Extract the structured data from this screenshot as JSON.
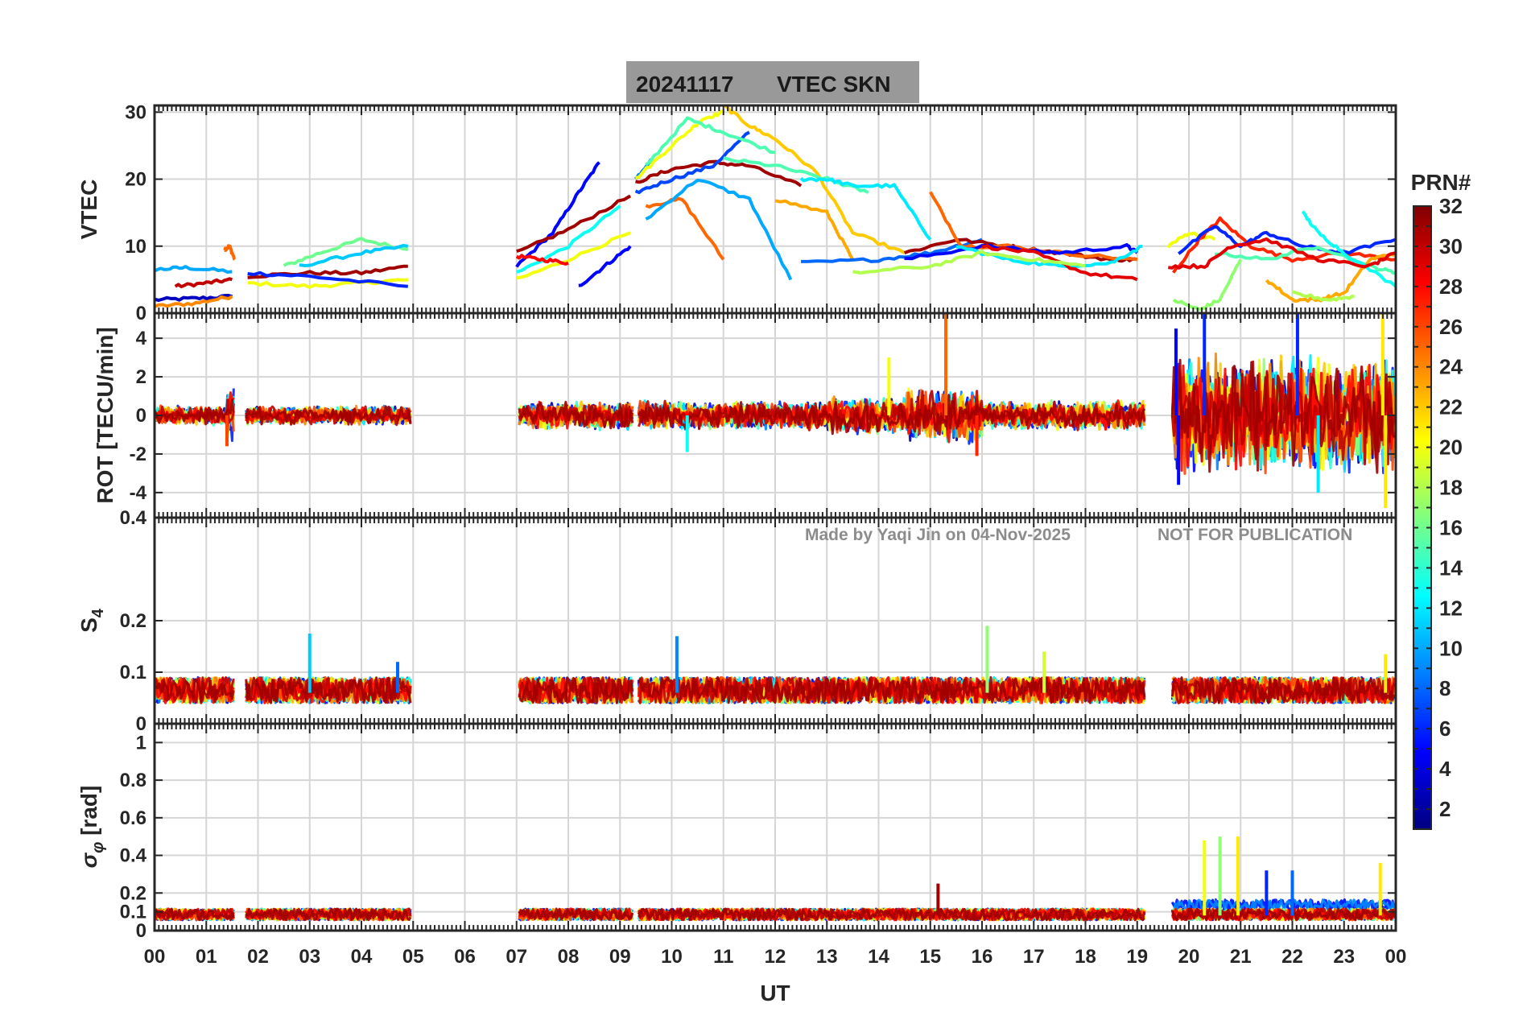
{
  "title": {
    "date": "20241117",
    "text": "VTEC  SKN"
  },
  "watermark": {
    "made_by": "Made by Yaqi Jin on 04-Nov-2025",
    "notice": "NOT FOR PUBLICATION"
  },
  "colorbar": {
    "title": "PRN#",
    "min": 1,
    "max": 32,
    "tick_labels": [
      "32",
      "30",
      "28",
      "26",
      "24",
      "22",
      "20",
      "18",
      "16",
      "14",
      "12",
      "10",
      "8",
      "6",
      "4",
      "2"
    ],
    "tick_values": [
      32,
      30,
      28,
      26,
      24,
      22,
      20,
      18,
      16,
      14,
      12,
      10,
      8,
      6,
      4,
      2
    ],
    "colormap": "jet"
  },
  "x_axis": {
    "label": "UT",
    "range": [
      0,
      24
    ],
    "tick_labels": [
      "00",
      "01",
      "02",
      "03",
      "04",
      "05",
      "06",
      "07",
      "08",
      "09",
      "10",
      "11",
      "12",
      "13",
      "14",
      "15",
      "16",
      "17",
      "18",
      "19",
      "20",
      "21",
      "22",
      "23",
      "00"
    ]
  },
  "data_gaps_ut": [
    [
      1.55,
      1.75
    ],
    [
      4.95,
      7.05
    ],
    [
      9.25,
      9.35
    ],
    [
      19.15,
      19.65
    ]
  ],
  "chart_data": [
    {
      "type": "line",
      "panel": "VTEC",
      "ylabel": "VTEC",
      "ylim": [
        0,
        31
      ],
      "y_tick_labels": [
        "0",
        "10",
        "20",
        "30"
      ],
      "y_tick_values": [
        0,
        10,
        20,
        30
      ],
      "grid": true,
      "description_of_series": "Per-PRN VTEC arcs colored by PRN number",
      "series": [
        {
          "prn": 3,
          "x": [
            0.0,
            0.8,
            1.5
          ],
          "y": [
            2,
            2.2,
            2.5
          ]
        },
        {
          "prn": 10,
          "x": [
            0.0,
            0.6,
            1.5
          ],
          "y": [
            6.5,
            6.8,
            6.2
          ]
        },
        {
          "prn": 24,
          "x": [
            0.0,
            0.8,
            1.5
          ],
          "y": [
            1,
            1.5,
            2.5
          ]
        },
        {
          "prn": 25,
          "x": [
            1.35,
            1.45,
            1.55
          ],
          "y": [
            9.5,
            10,
            8
          ]
        },
        {
          "prn": 30,
          "x": [
            0.4,
            1.0,
            1.5
          ],
          "y": [
            4,
            4.5,
            5
          ]
        },
        {
          "prn": 20,
          "x": [
            1.8,
            3.0,
            4.0,
            4.9
          ],
          "y": [
            4.5,
            4,
            4.5,
            5
          ]
        },
        {
          "prn": 16,
          "x": [
            2.5,
            3.2,
            4.0,
            4.9
          ],
          "y": [
            7,
            9,
            11,
            9.5
          ]
        },
        {
          "prn": 31,
          "x": [
            1.8,
            3.0,
            4.0,
            4.9
          ],
          "y": [
            5.5,
            6,
            6,
            7
          ]
        },
        {
          "prn": 6,
          "x": [
            1.8,
            3.0,
            4.9
          ],
          "y": [
            6,
            5.5,
            4
          ]
        },
        {
          "prn": 11,
          "x": [
            2.8,
            4.0,
            4.9
          ],
          "y": [
            7,
            9,
            10
          ]
        },
        {
          "prn": 5,
          "x": [
            7.0,
            7.7,
            8.2,
            8.6
          ],
          "y": [
            7,
            12,
            18,
            22.5
          ]
        },
        {
          "prn": 5,
          "x": [
            8.2,
            8.7,
            9.2
          ],
          "y": [
            4,
            7,
            10
          ]
        },
        {
          "prn": 13,
          "x": [
            7.0,
            8.0,
            9.0
          ],
          "y": [
            6,
            10,
            16
          ]
        },
        {
          "prn": 20,
          "x": [
            7.0,
            8.0,
            9.2
          ],
          "y": [
            5,
            8,
            12
          ]
        },
        {
          "prn": 31,
          "x": [
            7.0,
            8.0,
            9.2
          ],
          "y": [
            9,
            12.5,
            17.5
          ]
        },
        {
          "prn": 28,
          "x": [
            7.0,
            7.5,
            8.0
          ],
          "y": [
            8.5,
            8,
            7.5
          ]
        },
        {
          "prn": 9,
          "x": [
            9.3,
            9.6
          ],
          "y": [
            20,
            23
          ]
        },
        {
          "prn": 20,
          "x": [
            9.3,
            10.0,
            10.6,
            11.0
          ],
          "y": [
            20,
            25,
            29,
            30
          ]
        },
        {
          "prn": 31,
          "x": [
            9.3,
            10.0,
            10.8,
            11.5,
            12.5
          ],
          "y": [
            19.5,
            21.5,
            22.5,
            22,
            19
          ]
        },
        {
          "prn": 7,
          "x": [
            9.3,
            10.0,
            10.8,
            11.5
          ],
          "y": [
            18,
            20,
            22,
            27
          ]
        },
        {
          "prn": 15,
          "x": [
            9.5,
            10.3,
            11.0,
            12.0
          ],
          "y": [
            22,
            29,
            27,
            24
          ]
        },
        {
          "prn": 25,
          "x": [
            9.5,
            10.2,
            11.0
          ],
          "y": [
            16,
            17,
            8
          ]
        },
        {
          "prn": 10,
          "x": [
            9.5,
            10.5,
            11.5,
            12.3
          ],
          "y": [
            14,
            20,
            17,
            5
          ]
        },
        {
          "prn": 22,
          "x": [
            11.0,
            11.5,
            12.0,
            12.8,
            13.5,
            14.5
          ],
          "y": [
            31,
            28,
            26,
            21,
            12,
            9
          ]
        },
        {
          "prn": 15,
          "x": [
            11.0,
            12.0,
            13.0,
            13.8
          ],
          "y": [
            23,
            22,
            20,
            18
          ]
        },
        {
          "prn": 12,
          "x": [
            12.5,
            13.0,
            13.5,
            14.3,
            15.0
          ],
          "y": [
            20,
            20,
            19,
            19,
            11
          ]
        },
        {
          "prn": 23,
          "x": [
            12.0,
            13.0,
            13.5
          ],
          "y": [
            17,
            15,
            8
          ]
        },
        {
          "prn": 8,
          "x": [
            12.5,
            14.0,
            15.0,
            16.0
          ],
          "y": [
            7.5,
            8,
            9,
            11
          ]
        },
        {
          "prn": 31,
          "x": [
            14.5,
            15.5,
            16.5,
            17.5,
            18.5,
            19.0
          ],
          "y": [
            9,
            11,
            10,
            9,
            8,
            8
          ]
        },
        {
          "prn": 25,
          "x": [
            15.0,
            15.6,
            16.5,
            17.5,
            19.0
          ],
          "y": [
            18,
            10,
            10,
            9,
            8
          ]
        },
        {
          "prn": 5,
          "x": [
            14.5,
            16.0,
            17.5,
            18.8,
            19.0
          ],
          "y": [
            8,
            10,
            9,
            10,
            9
          ]
        },
        {
          "prn": 12,
          "x": [
            15.5,
            16.5,
            17.5,
            18.5,
            19.1
          ],
          "y": [
            10,
            8,
            7,
            7.5,
            10
          ]
        },
        {
          "prn": 29,
          "x": [
            16.0,
            17.0,
            18.0,
            19.0
          ],
          "y": [
            10,
            9,
            6,
            5
          ]
        },
        {
          "prn": 18,
          "x": [
            13.5,
            15.0,
            16.0,
            17.0,
            18.0
          ],
          "y": [
            6,
            7,
            9,
            8,
            7
          ]
        },
        {
          "prn": 20,
          "x": [
            19.6,
            20.0,
            20.5
          ],
          "y": [
            10,
            12,
            11
          ]
        },
        {
          "prn": 17,
          "x": [
            19.7,
            20.2,
            20.6,
            21.0
          ],
          "y": [
            2,
            0.5,
            2,
            8
          ]
        },
        {
          "prn": 27,
          "x": [
            19.7,
            20.2,
            20.6,
            21.2,
            22.0,
            23.0,
            24.0
          ],
          "y": [
            6,
            11,
            14,
            10,
            8,
            9,
            8
          ]
        },
        {
          "prn": 6,
          "x": [
            19.8,
            20.5,
            21.0,
            21.5,
            22.2,
            23.0,
            24.0
          ],
          "y": [
            9,
            13,
            10,
            12,
            10,
            9,
            11
          ]
        },
        {
          "prn": 15,
          "x": [
            20.5,
            21.5,
            22.5,
            23.5,
            24.0
          ],
          "y": [
            9,
            8,
            10,
            7,
            6
          ]
        },
        {
          "prn": 23,
          "x": [
            21.5,
            22.0,
            22.5,
            23.0,
            23.5,
            24.0
          ],
          "y": [
            5,
            2,
            2,
            3,
            8,
            9
          ]
        },
        {
          "prn": 13,
          "x": [
            22.2,
            22.5,
            23.0,
            24.0
          ],
          "y": [
            15,
            12,
            9,
            4
          ]
        },
        {
          "prn": 29,
          "x": [
            19.6,
            20.3,
            20.8,
            21.5,
            22.5,
            23.5,
            24.0
          ],
          "y": [
            7,
            7,
            10,
            11,
            8,
            7,
            9
          ]
        },
        {
          "prn": 18,
          "x": [
            22.0,
            22.7,
            23.2
          ],
          "y": [
            3,
            2,
            2.5
          ]
        }
      ]
    },
    {
      "type": "line",
      "panel": "ROT",
      "ylabel": "ROT [TECU/min]",
      "ylim": [
        -5.3,
        5.3
      ],
      "y_tick_labels": [
        "-4",
        "-2",
        "0",
        "2",
        "4"
      ],
      "y_tick_values": [
        -4,
        -2,
        0,
        2,
        4
      ],
      "grid": true,
      "description_of_series": "Rate of TEC per PRN; mostly within ±0.5, large excursions after 19.7 UT",
      "noise_amplitude_by_ut": [
        [
          0,
          0.4
        ],
        [
          1.4,
          1.2
        ],
        [
          1.7,
          0.4
        ],
        [
          5.0,
          0.4
        ],
        [
          7.0,
          0.6
        ],
        [
          13.0,
          0.8
        ],
        [
          14.5,
          1.2
        ],
        [
          16.0,
          0.6
        ],
        [
          19.7,
          2.5
        ],
        [
          24.0,
          2.5
        ]
      ],
      "spikes": [
        {
          "prn": 25,
          "x": 15.3,
          "y": 5.3
        },
        {
          "prn": 5,
          "x": 19.75,
          "y": 4.5
        },
        {
          "prn": 5,
          "x": 19.8,
          "y": -3.6
        },
        {
          "prn": 6,
          "x": 20.3,
          "y": 5.3
        },
        {
          "prn": 6,
          "x": 22.1,
          "y": 5.3
        },
        {
          "prn": 21,
          "x": 23.75,
          "y": 5.3
        },
        {
          "prn": 21,
          "x": 23.8,
          "y": -4.8
        },
        {
          "prn": 12,
          "x": 22.5,
          "y": -4.0
        },
        {
          "prn": 20,
          "x": 14.2,
          "y": 3.0
        },
        {
          "prn": 26,
          "x": 1.4,
          "y": -1.6
        },
        {
          "prn": 27,
          "x": 15.9,
          "y": -2.1
        },
        {
          "prn": 13,
          "x": 10.3,
          "y": -1.9
        }
      ]
    },
    {
      "type": "line",
      "panel": "S4",
      "ylabel": "S4",
      "ylim": [
        0,
        0.4
      ],
      "y_tick_labels": [
        "0",
        "0.1",
        "0.2",
        "0.4"
      ],
      "y_tick_values": [
        0,
        0.1,
        0.2,
        0.4
      ],
      "grid": true,
      "description_of_series": "Amplitude scintillation index per PRN; baseline 0.04-0.1",
      "baseline": 0.06,
      "spikes": [
        {
          "prn": 11,
          "x": 3.0,
          "y": 0.175
        },
        {
          "prn": 9,
          "x": 10.1,
          "y": 0.17
        },
        {
          "prn": 17,
          "x": 16.1,
          "y": 0.19
        },
        {
          "prn": 19,
          "x": 17.2,
          "y": 0.14
        },
        {
          "prn": 21,
          "x": 23.8,
          "y": 0.135
        },
        {
          "prn": 8,
          "x": 4.7,
          "y": 0.12
        }
      ]
    },
    {
      "type": "line",
      "panel": "sigma_phi",
      "ylabel": "σφ [rad]",
      "ylim": [
        0,
        1.1
      ],
      "y_tick_labels": [
        "0",
        "0.1",
        "0.2",
        "0.4",
        "0.6",
        "0.8",
        "1"
      ],
      "y_tick_values": [
        0,
        0.1,
        0.2,
        0.4,
        0.6,
        0.8,
        1.0
      ],
      "grid": true,
      "description_of_series": "Phase scintillation index per PRN; baseline ~0.1, bursts up to 0.5 near 20-21 UT",
      "baseline": 0.08,
      "spikes": [
        {
          "prn": 31,
          "x": 15.15,
          "y": 0.25
        },
        {
          "prn": 20,
          "x": 20.3,
          "y": 0.48
        },
        {
          "prn": 17,
          "x": 20.6,
          "y": 0.5
        },
        {
          "prn": 21,
          "x": 20.95,
          "y": 0.5
        },
        {
          "prn": 21,
          "x": 23.7,
          "y": 0.36
        },
        {
          "prn": 6,
          "x": 21.5,
          "y": 0.32
        },
        {
          "prn": 8,
          "x": 22.0,
          "y": 0.32
        }
      ]
    }
  ]
}
